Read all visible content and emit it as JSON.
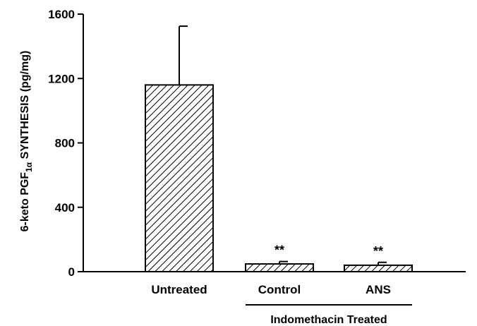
{
  "chart_data": {
    "type": "bar",
    "title": "",
    "ylabel": {
      "prefix": "6-keto PGF",
      "subscript": "1α",
      "suffix": " SYNTHESIS (pg/mg)"
    },
    "xlabel": "",
    "ylim": [
      0,
      1600
    ],
    "yticks": [
      "0",
      "400",
      "800",
      "1200",
      "1600"
    ],
    "categories": [
      "Untreated",
      "Control",
      "ANS"
    ],
    "values": [
      1160,
      48,
      40
    ],
    "errors": [
      365,
      15,
      18
    ],
    "annotations": [
      "",
      "**",
      "**"
    ],
    "group_label": "Indomethacin Treated",
    "grid": false,
    "bar_fill": "diagonal-hatch",
    "colors": {
      "bar_stroke": "#000000",
      "hatch": "#000000",
      "background": "#ffffff"
    }
  }
}
